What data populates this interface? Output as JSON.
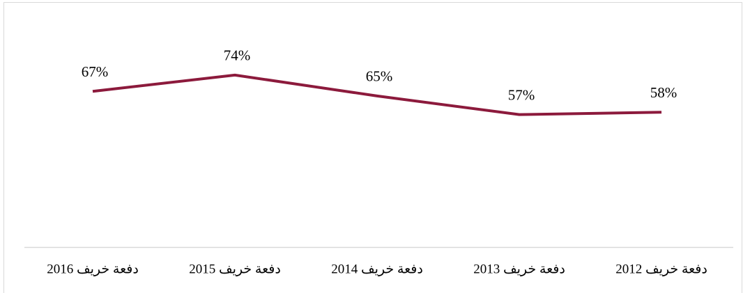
{
  "chart_data": {
    "type": "line",
    "categories": [
      "دفعة خريف 2016",
      "دفعة خريف 2015",
      "دفعة خريف 2014",
      "دفعة خريف 2013",
      "دفعة خريف 2012"
    ],
    "series": [
      {
        "color": "#8c1a3c",
        "values": [
          67,
          74,
          65,
          57,
          58
        ],
        "value_labels": [
          "67%",
          "74%",
          "65%",
          "57%",
          "58%"
        ]
      }
    ],
    "ylim": [
      0,
      100
    ]
  }
}
